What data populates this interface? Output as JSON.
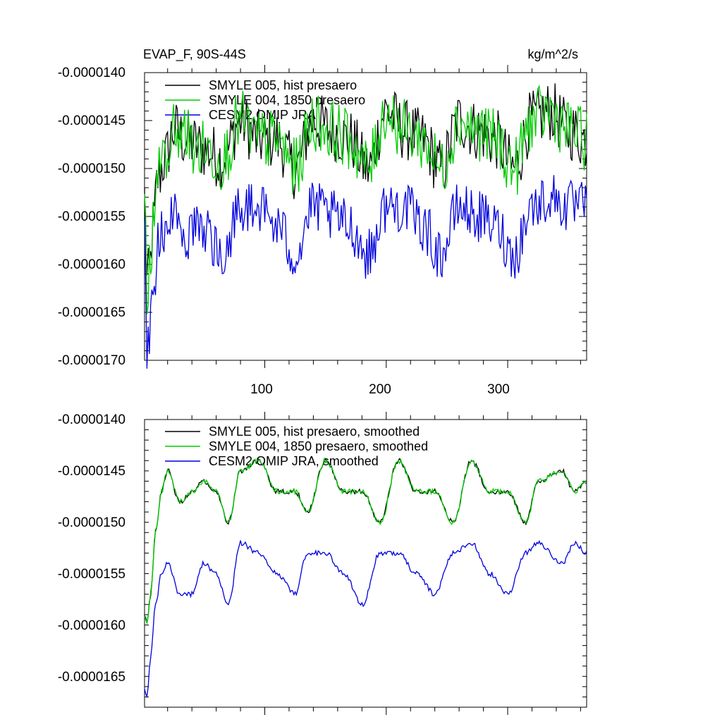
{
  "chart_data": [
    {
      "type": "line",
      "title": "EVAP_F, 90S-44S",
      "units": "kg/m^2/s",
      "xlim": [
        1,
        365
      ],
      "ylim": [
        -1.7e-05,
        -1.4e-05
      ],
      "x_ticks": [
        100,
        200,
        300
      ],
      "x_tick_labels": [
        "100",
        "200",
        "300"
      ],
      "y_ticks": [
        -1.4e-05,
        -1.45e-05,
        -1.5e-05,
        -1.55e-05,
        -1.6e-05,
        -1.65e-05,
        -1.7e-05
      ],
      "y_tick_labels": [
        "-0.0000140",
        "-0.0000145",
        "-0.0000150",
        "-0.0000155",
        "-0.0000160",
        "-0.0000165",
        "-0.0000170"
      ],
      "legend_position": "top-left",
      "series": [
        {
          "name": "SMYLE 005, hist presaero",
          "color": "#000000",
          "x": [
            1,
            3,
            5,
            8,
            12,
            18,
            25,
            35,
            50,
            65,
            80,
            95,
            110,
            125,
            140,
            155,
            170,
            185,
            200,
            215,
            230,
            245,
            260,
            275,
            290,
            305,
            320,
            335,
            350,
            365
          ],
          "values": [
            -1.53e-05,
            -1.62e-05,
            -1.61e-05,
            -1.56e-05,
            -1.51e-05,
            -1.49e-05,
            -1.46e-05,
            -1.47e-05,
            -1.48e-05,
            -1.49e-05,
            -1.45e-05,
            -1.47e-05,
            -1.47e-05,
            -1.5e-05,
            -1.45e-05,
            -1.46e-05,
            -1.47e-05,
            -1.5e-05,
            -1.44e-05,
            -1.46e-05,
            -1.47e-05,
            -1.5e-05,
            -1.45e-05,
            -1.46e-05,
            -1.47e-05,
            -1.5e-05,
            -1.45e-05,
            -1.44e-05,
            -1.46e-05,
            -1.47e-05
          ]
        },
        {
          "name": "SMYLE 004, 1850 presaero",
          "color": "#00cc00",
          "x": [
            1,
            3,
            5,
            8,
            12,
            18,
            25,
            35,
            50,
            65,
            80,
            95,
            110,
            125,
            140,
            155,
            170,
            185,
            200,
            215,
            230,
            245,
            260,
            275,
            290,
            305,
            320,
            335,
            350,
            365
          ],
          "values": [
            -1.53e-05,
            -1.62e-05,
            -1.61e-05,
            -1.56e-05,
            -1.51e-05,
            -1.49e-05,
            -1.46e-05,
            -1.47e-05,
            -1.48e-05,
            -1.49e-05,
            -1.45e-05,
            -1.47e-05,
            -1.47e-05,
            -1.5e-05,
            -1.45e-05,
            -1.46e-05,
            -1.47e-05,
            -1.5e-05,
            -1.44e-05,
            -1.46e-05,
            -1.47e-05,
            -1.5e-05,
            -1.45e-05,
            -1.46e-05,
            -1.47e-05,
            -1.5e-05,
            -1.45e-05,
            -1.44e-05,
            -1.46e-05,
            -1.47e-05
          ]
        },
        {
          "name": "CESM2 OMIP JRA",
          "color": "#0000dd",
          "x": [
            1,
            3,
            5,
            8,
            12,
            18,
            25,
            35,
            50,
            65,
            80,
            95,
            110,
            125,
            140,
            155,
            170,
            185,
            200,
            215,
            230,
            245,
            260,
            275,
            290,
            305,
            320,
            335,
            350,
            365
          ],
          "values": [
            -1.55e-05,
            -1.69e-05,
            -1.67e-05,
            -1.64e-05,
            -1.58e-05,
            -1.56e-05,
            -1.55e-05,
            -1.57e-05,
            -1.56e-05,
            -1.59e-05,
            -1.54e-05,
            -1.54e-05,
            -1.56e-05,
            -1.59e-05,
            -1.54e-05,
            -1.55e-05,
            -1.56e-05,
            -1.59e-05,
            -1.54e-05,
            -1.54e-05,
            -1.56e-05,
            -1.59e-05,
            -1.54e-05,
            -1.55e-05,
            -1.56e-05,
            -1.59e-05,
            -1.54e-05,
            -1.53e-05,
            -1.54e-05,
            -1.54e-05
          ]
        }
      ]
    },
    {
      "type": "line",
      "xlim": [
        1,
        365
      ],
      "ylim": [
        -1.68e-05,
        -1.4e-05
      ],
      "x_ticks": [
        100,
        200,
        300
      ],
      "y_ticks": [
        -1.4e-05,
        -1.45e-05,
        -1.5e-05,
        -1.55e-05,
        -1.6e-05,
        -1.65e-05
      ],
      "y_tick_labels": [
        "-0.0000140",
        "-0.0000145",
        "-0.0000150",
        "-0.0000155",
        "-0.0000160",
        "-0.0000165"
      ],
      "legend_position": "top-left",
      "series": [
        {
          "name": "SMYLE 005, hist presaero, smoothed",
          "color": "#000000",
          "x": [
            1,
            3,
            6,
            10,
            15,
            20,
            30,
            40,
            50,
            60,
            70,
            80,
            95,
            110,
            125,
            135,
            150,
            165,
            180,
            195,
            210,
            225,
            240,
            255,
            270,
            285,
            300,
            315,
            325,
            345,
            355,
            365
          ],
          "values": [
            -1.59e-05,
            -1.6e-05,
            -1.57e-05,
            -1.51e-05,
            -1.47e-05,
            -1.45e-05,
            -1.48e-05,
            -1.47e-05,
            -1.46e-05,
            -1.47e-05,
            -1.5e-05,
            -1.45e-05,
            -1.44e-05,
            -1.47e-05,
            -1.47e-05,
            -1.49e-05,
            -1.44e-05,
            -1.47e-05,
            -1.47e-05,
            -1.5e-05,
            -1.44e-05,
            -1.47e-05,
            -1.47e-05,
            -1.5e-05,
            -1.44e-05,
            -1.47e-05,
            -1.47e-05,
            -1.5e-05,
            -1.46e-05,
            -1.45e-05,
            -1.47e-05,
            -1.46e-05
          ]
        },
        {
          "name": "SMYLE 004, 1850 presaero, smoothed",
          "color": "#00cc00",
          "x": [
            1,
            3,
            6,
            10,
            15,
            20,
            30,
            40,
            50,
            60,
            70,
            80,
            95,
            110,
            125,
            135,
            150,
            165,
            180,
            195,
            210,
            225,
            240,
            255,
            270,
            285,
            300,
            315,
            325,
            345,
            355,
            365
          ],
          "values": [
            -1.59e-05,
            -1.6e-05,
            -1.57e-05,
            -1.51e-05,
            -1.47e-05,
            -1.45e-05,
            -1.48e-05,
            -1.47e-05,
            -1.46e-05,
            -1.47e-05,
            -1.5e-05,
            -1.45e-05,
            -1.44e-05,
            -1.47e-05,
            -1.47e-05,
            -1.49e-05,
            -1.44e-05,
            -1.47e-05,
            -1.47e-05,
            -1.5e-05,
            -1.44e-05,
            -1.47e-05,
            -1.47e-05,
            -1.5e-05,
            -1.44e-05,
            -1.47e-05,
            -1.47e-05,
            -1.5e-05,
            -1.46e-05,
            -1.45e-05,
            -1.47e-05,
            -1.46e-05
          ]
        },
        {
          "name": "CESM2 OMIP JRA, smoothed",
          "color": "#0000dd",
          "x": [
            1,
            3,
            6,
            10,
            15,
            20,
            30,
            40,
            50,
            60,
            70,
            80,
            95,
            110,
            125,
            135,
            150,
            165,
            180,
            195,
            210,
            225,
            240,
            255,
            270,
            285,
            300,
            315,
            325,
            345,
            355,
            365
          ],
          "values": [
            -1.66e-05,
            -1.67e-05,
            -1.63e-05,
            -1.58e-05,
            -1.55e-05,
            -1.54e-05,
            -1.57e-05,
            -1.57e-05,
            -1.54e-05,
            -1.55e-05,
            -1.58e-05,
            -1.52e-05,
            -1.53e-05,
            -1.55e-05,
            -1.57e-05,
            -1.53e-05,
            -1.53e-05,
            -1.55e-05,
            -1.58e-05,
            -1.53e-05,
            -1.53e-05,
            -1.55e-05,
            -1.57e-05,
            -1.53e-05,
            -1.52e-05,
            -1.55e-05,
            -1.57e-05,
            -1.53e-05,
            -1.52e-05,
            -1.54e-05,
            -1.52e-05,
            -1.53e-05
          ]
        }
      ]
    }
  ]
}
